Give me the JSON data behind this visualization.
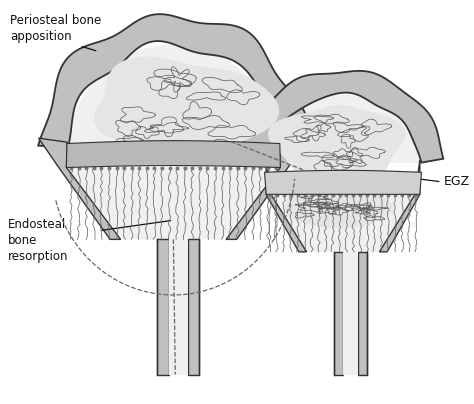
{
  "background_color": "#ffffff",
  "label_periosteal": "Periosteal bone\napposition",
  "label_endosteal": "Endosteal\nbone\nresorption",
  "label_egz": "EGZ",
  "lc": "#333333",
  "fill_cortex": "#c0c0c0",
  "fill_inner": "#e8e8e8",
  "fill_gp": "#b8b8b8",
  "fill_white": "#f5f5f5",
  "figsize": [
    4.74,
    4.04
  ],
  "dpi": 100
}
